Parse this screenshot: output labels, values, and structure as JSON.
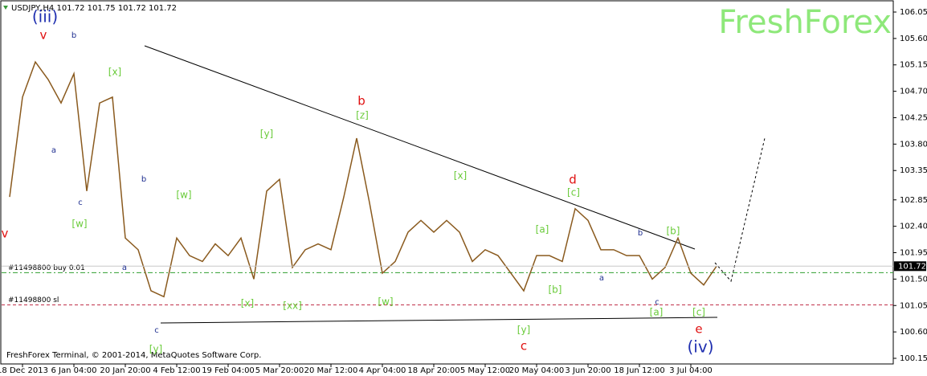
{
  "chart_data": {
    "type": "line",
    "title": "USDJPY,H4  101.72 101.75 101.72 101.72",
    "watermark": "FreshForex",
    "footer": "FreshForex Terminal, © 2001-2014, MetaQuotes Software Corp.",
    "color": "#8a5a1e",
    "categories": [
      null,
      "18 Dec 2013",
      null,
      null,
      null,
      "6 Jan 04:00",
      null,
      null,
      null,
      "20 Jan 20:00",
      null,
      null,
      null,
      "4 Feb 12:00",
      null,
      null,
      null,
      "19 Feb 04:00",
      null,
      null,
      null,
      "5 Mar 20:00",
      null,
      null,
      null,
      "20 Mar 12:00",
      null,
      null,
      null,
      "4 Apr 04:00",
      null,
      null,
      null,
      "18 Apr 20:00",
      null,
      null,
      null,
      "5 May 12:00",
      null,
      null,
      null,
      "20 May 04:00",
      null,
      null,
      null,
      "3 Jun 20:00",
      null,
      null,
      null,
      "18 Jun 12:00",
      null,
      null,
      null,
      "3 Jul 04:00",
      null,
      null
    ],
    "values": [
      102.9,
      104.6,
      105.2,
      104.9,
      104.5,
      105.0,
      103.0,
      104.5,
      104.6,
      102.2,
      102.0,
      101.3,
      101.2,
      102.2,
      101.9,
      101.8,
      102.1,
      101.9,
      102.2,
      101.5,
      103.0,
      103.2,
      101.7,
      102.0,
      102.1,
      102.0,
      102.9,
      103.9,
      102.8,
      101.6,
      101.8,
      102.3,
      102.5,
      102.3,
      102.5,
      102.3,
      101.8,
      102.0,
      101.9,
      101.6,
      101.3,
      101.9,
      101.9,
      101.8,
      102.7,
      102.5,
      102.0,
      102.0,
      101.9,
      101.9,
      101.5,
      101.7,
      102.2,
      101.6,
      101.4,
      101.72
    ],
    "ylim": [
      100.15,
      106.05
    ],
    "yticks": [
      106.05,
      {
        "value": 105.6,
        "label": "105.60"
      },
      105.15,
      {
        "value": 104.7,
        "label": "104.70"
      },
      104.25,
      {
        "value": 103.8,
        "label": "103.80"
      },
      103.35,
      102.85,
      {
        "value": 102.4,
        "label": "102.40"
      },
      101.95,
      {
        "value": 101.5,
        "label": "101.50"
      },
      101.05,
      {
        "value": 100.6,
        "label": "100.60"
      },
      100.15
    ],
    "last_price": 101.72,
    "order_lines": [
      {
        "label": "#11498800 buy 0.01",
        "value": 101.61,
        "color": "#2e9e2e"
      },
      {
        "label": "#11498800 sl",
        "value": 101.06,
        "color": "#c0304a"
      }
    ],
    "annotations": [
      {
        "text": "(iii)",
        "color": "#1f2fb0"
      },
      {
        "text": "v",
        "color": "#e01010"
      },
      {
        "text": "b",
        "color": "#1f2f90"
      },
      {
        "text": "[x]",
        "color": "#6acb3a"
      },
      {
        "text": "a",
        "color": "#1f2f90"
      },
      {
        "text": "c",
        "color": "#1f2f90"
      },
      {
        "text": "[w]",
        "color": "#6acb3a"
      },
      {
        "text": "b",
        "color": "#1f2f90"
      },
      {
        "text": "a",
        "color": "#1f2f90"
      },
      {
        "text": "[w]",
        "color": "#6acb3a"
      },
      {
        "text": "c",
        "color": "#1f2f90"
      },
      {
        "text": "[y]",
        "color": "#6acb3a"
      },
      {
        "text": "v",
        "color": "#e01010"
      },
      {
        "text": "[y]",
        "color": "#6acb3a"
      },
      {
        "text": "[x]",
        "color": "#6acb3a"
      },
      {
        "text": "[xx]",
        "color": "#6acb3a"
      },
      {
        "text": "b",
        "color": "#e01010"
      },
      {
        "text": "[z]",
        "color": "#6acb3a"
      },
      {
        "text": "[w]",
        "color": "#6acb3a"
      },
      {
        "text": "[x]",
        "color": "#6acb3a"
      },
      {
        "text": "[y]",
        "color": "#6acb3a"
      },
      {
        "text": "c",
        "color": "#e01010"
      },
      {
        "text": "d",
        "color": "#e01010"
      },
      {
        "text": "[c]",
        "color": "#6acb3a"
      },
      {
        "text": "[a]",
        "color": "#6acb3a"
      },
      {
        "text": "[b]",
        "color": "#6acb3a"
      },
      {
        "text": "b",
        "color": "#1f2f90"
      },
      {
        "text": "a",
        "color": "#1f2f90"
      },
      {
        "text": "c",
        "color": "#1f2f90"
      },
      {
        "text": "[a]",
        "color": "#6acb3a"
      },
      {
        "text": "[b]",
        "color": "#6acb3a"
      },
      {
        "text": "[c]",
        "color": "#6acb3a"
      },
      {
        "text": "e",
        "color": "#e01010"
      },
      {
        "text": "(iv)",
        "color": "#1f2fb0"
      }
    ]
  }
}
